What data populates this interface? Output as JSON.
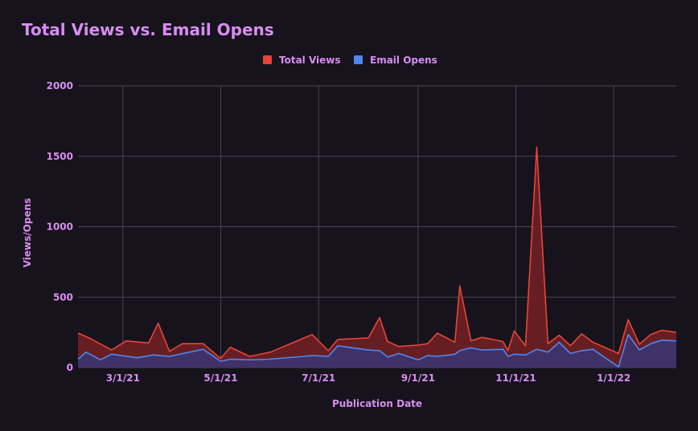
{
  "colors": {
    "background": "#16131c",
    "grid": "#4a4550",
    "text": "#d98cf2",
    "total_views": "#e5453a",
    "total_views_fill": "#6b1f24",
    "email_opens": "#4f86f0",
    "email_opens_fill": "#3c3470"
  },
  "chart_data": {
    "type": "area",
    "title": "Total Views vs. Email Opens",
    "xlabel": "Publication Date",
    "ylabel": "Views/Opens",
    "ylim": [
      0,
      2000
    ],
    "yticks": [
      0,
      500,
      1000,
      1500,
      2000
    ],
    "ytick_labels": [
      "0",
      "500",
      "1000",
      "1500",
      "2000"
    ],
    "xlim": [
      "2021-02-01",
      "2022-02-09"
    ],
    "xticks": [
      "2021-03-01",
      "2021-05-01",
      "2021-07-01",
      "2021-09-01",
      "2021-11-01",
      "2022-01-01"
    ],
    "xtick_labels": [
      "3/1/21",
      "5/1/21",
      "7/1/21",
      "9/1/21",
      "11/1/21",
      "1/1/22"
    ],
    "legend_position": "top-center",
    "grid": true,
    "series": [
      {
        "name": "Total Views",
        "color": "#e5453a",
        "points": [
          [
            "2021-02-01",
            245
          ],
          [
            "2021-02-08",
            210
          ],
          [
            "2021-02-22",
            125
          ],
          [
            "2021-03-03",
            190
          ],
          [
            "2021-03-17",
            175
          ],
          [
            "2021-03-23",
            315
          ],
          [
            "2021-03-30",
            115
          ],
          [
            "2021-04-07",
            170
          ],
          [
            "2021-04-20",
            170
          ],
          [
            "2021-05-01",
            65
          ],
          [
            "2021-05-07",
            145
          ],
          [
            "2021-05-19",
            80
          ],
          [
            "2021-06-01",
            110
          ],
          [
            "2021-06-27",
            235
          ],
          [
            "2021-07-07",
            120
          ],
          [
            "2021-07-13",
            200
          ],
          [
            "2021-08-01",
            210
          ],
          [
            "2021-08-08",
            355
          ],
          [
            "2021-08-13",
            185
          ],
          [
            "2021-08-20",
            150
          ],
          [
            "2021-09-01",
            160
          ],
          [
            "2021-09-07",
            170
          ],
          [
            "2021-09-13",
            245
          ],
          [
            "2021-09-24",
            180
          ],
          [
            "2021-09-27",
            580
          ],
          [
            "2021-10-04",
            190
          ],
          [
            "2021-10-11",
            215
          ],
          [
            "2021-10-24",
            185
          ],
          [
            "2021-10-27",
            120
          ],
          [
            "2021-10-31",
            260
          ],
          [
            "2021-11-07",
            155
          ],
          [
            "2021-11-14",
            1565
          ],
          [
            "2021-11-21",
            170
          ],
          [
            "2021-11-28",
            230
          ],
          [
            "2021-12-05",
            155
          ],
          [
            "2021-12-12",
            240
          ],
          [
            "2021-12-19",
            180
          ],
          [
            "2022-01-04",
            100
          ],
          [
            "2022-01-10",
            340
          ],
          [
            "2022-01-17",
            165
          ],
          [
            "2022-01-24",
            235
          ],
          [
            "2022-01-31",
            265
          ],
          [
            "2022-02-09",
            250
          ]
        ]
      },
      {
        "name": "Email Opens",
        "color": "#4f86f0",
        "points": [
          [
            "2021-02-01",
            60
          ],
          [
            "2021-02-06",
            110
          ],
          [
            "2021-02-15",
            55
          ],
          [
            "2021-02-22",
            95
          ],
          [
            "2021-03-10",
            70
          ],
          [
            "2021-03-20",
            90
          ],
          [
            "2021-03-30",
            80
          ],
          [
            "2021-04-20",
            130
          ],
          [
            "2021-05-01",
            45
          ],
          [
            "2021-05-07",
            60
          ],
          [
            "2021-05-19",
            55
          ],
          [
            "2021-06-01",
            60
          ],
          [
            "2021-06-27",
            85
          ],
          [
            "2021-07-07",
            80
          ],
          [
            "2021-07-13",
            155
          ],
          [
            "2021-08-01",
            125
          ],
          [
            "2021-08-08",
            120
          ],
          [
            "2021-08-13",
            75
          ],
          [
            "2021-08-20",
            100
          ],
          [
            "2021-09-01",
            55
          ],
          [
            "2021-09-07",
            85
          ],
          [
            "2021-09-13",
            80
          ],
          [
            "2021-09-24",
            95
          ],
          [
            "2021-09-27",
            120
          ],
          [
            "2021-10-04",
            140
          ],
          [
            "2021-10-11",
            125
          ],
          [
            "2021-10-24",
            130
          ],
          [
            "2021-10-27",
            80
          ],
          [
            "2021-10-31",
            95
          ],
          [
            "2021-11-07",
            90
          ],
          [
            "2021-11-14",
            130
          ],
          [
            "2021-11-21",
            110
          ],
          [
            "2021-11-28",
            180
          ],
          [
            "2021-12-05",
            100
          ],
          [
            "2021-12-12",
            120
          ],
          [
            "2021-12-19",
            130
          ],
          [
            "2022-01-04",
            5
          ],
          [
            "2022-01-10",
            235
          ],
          [
            "2022-01-17",
            125
          ],
          [
            "2022-01-24",
            170
          ],
          [
            "2022-01-31",
            195
          ],
          [
            "2022-02-09",
            190
          ]
        ]
      }
    ]
  }
}
